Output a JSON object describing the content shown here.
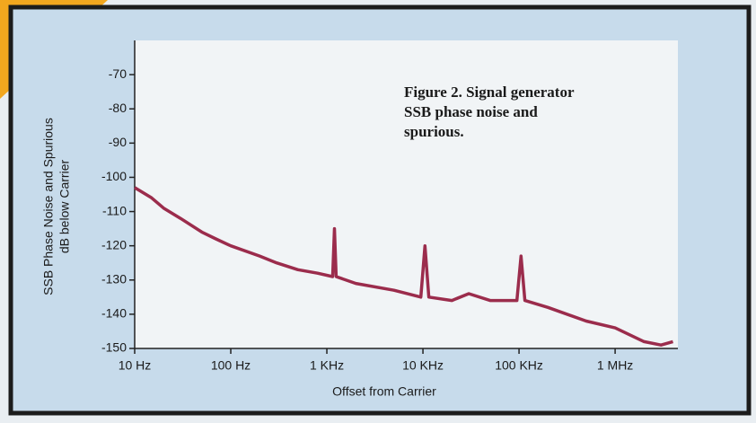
{
  "chart_data": {
    "type": "line",
    "title": "Figure 2.  Signal generator SSB phase noise and spurious.",
    "ylabel": [
      "SSB Phase Noise and Spurious",
      "dB below Carrier"
    ],
    "xlabel": "Offset from Carrier",
    "log_x": true,
    "color": "#9b2c4c",
    "x": [
      10,
      15,
      20,
      30,
      50,
      70,
      100,
      200,
      300,
      500,
      800,
      1150,
      1200,
      1250,
      2000,
      5000,
      9500,
      10500,
      11500,
      20000,
      30000,
      50000,
      95000,
      105000,
      115000,
      200000,
      500000,
      1000000,
      2000000,
      3000000,
      4000000
    ],
    "values": [
      -103,
      -106,
      -109,
      -112,
      -116,
      -118,
      -120,
      -123,
      -125,
      -127,
      -128,
      -129,
      -115,
      -129,
      -131,
      -133,
      -135,
      -120,
      -135,
      -136,
      -134,
      -136,
      -136,
      -123,
      -136,
      -138,
      -142,
      -144,
      -148,
      -149,
      -148
    ],
    "xlim": [
      10,
      4500000
    ],
    "ylim": [
      -150,
      -60
    ],
    "xticks": [
      {
        "value": 10,
        "label": "10 Hz"
      },
      {
        "value": 100,
        "label": "100 Hz"
      },
      {
        "value": 1000,
        "label": "1 KHz"
      },
      {
        "value": 10000,
        "label": "10 KHz"
      },
      {
        "value": 100000,
        "label": "100 KHz"
      },
      {
        "value": 1000000,
        "label": "1 MHz"
      }
    ],
    "yticks": [
      -70,
      -80,
      -90,
      -100,
      -110,
      -120,
      -130,
      -140,
      -150
    ]
  }
}
